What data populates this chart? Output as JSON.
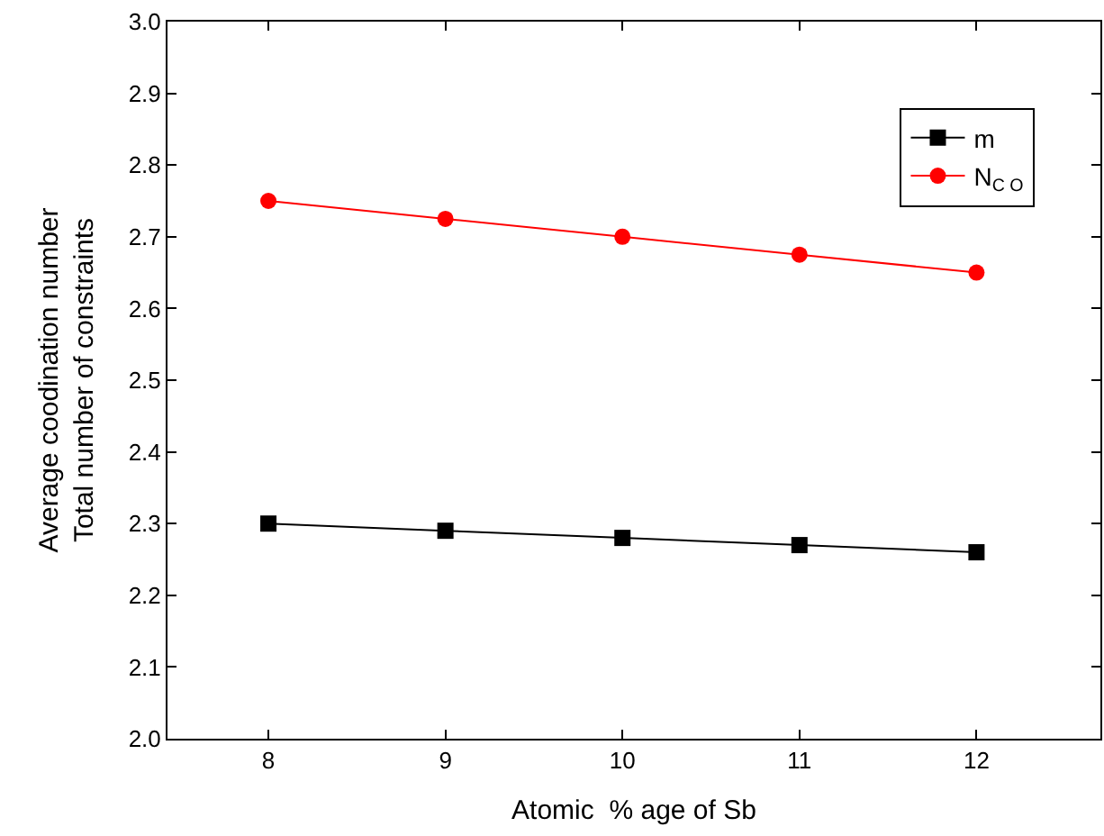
{
  "chart_data": {
    "type": "line",
    "xlabel": "Atomic  % age of Sb",
    "ylabel": "Average coodination number\nTotal number of constraints",
    "x": [
      8,
      9,
      10,
      11,
      12
    ],
    "series": [
      {
        "name": "m",
        "color": "#000000",
        "marker": "square",
        "values": [
          2.3,
          2.29,
          2.28,
          2.27,
          2.26
        ]
      },
      {
        "name": "N$_{C O}$",
        "color": "#ff0000",
        "marker": "circle",
        "values": [
          2.75,
          2.725,
          2.7,
          2.675,
          2.65
        ]
      }
    ],
    "xlim": [
      7.43,
      12.7
    ],
    "xticks": [
      8,
      9,
      10,
      11,
      12
    ],
    "ylim": [
      2.0,
      3.0
    ],
    "yticks": [
      {
        "value": 2.0,
        "label": "2.0"
      },
      {
        "value": 2.1,
        "label": "2.1"
      },
      {
        "value": 2.2,
        "label": "2.2"
      },
      {
        "value": 2.3,
        "label": "2.3"
      },
      {
        "value": 2.4,
        "label": "2.4"
      },
      {
        "value": 2.5,
        "label": "2.5"
      },
      {
        "value": 2.6,
        "label": "2.6"
      },
      {
        "value": 2.7,
        "label": "2.7"
      },
      {
        "value": 2.8,
        "label": "2.8"
      },
      {
        "value": 2.9,
        "label": "2.9"
      },
      {
        "value": 3.0,
        "label": "3.0"
      }
    ],
    "legend": "top right",
    "line_style": "solid"
  }
}
